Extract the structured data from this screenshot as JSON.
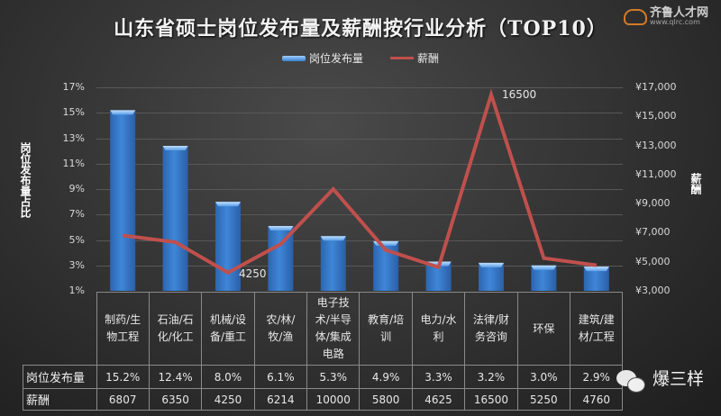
{
  "header": {
    "title": "山东省硕士岗位发布量及薪酬按行业分析（TOP10）",
    "logo_name": "齐鲁人才网",
    "logo_url": "www.qlrc.com"
  },
  "legend": {
    "bar_label": "岗位发布量",
    "line_label": "薪酬"
  },
  "axes": {
    "left_title": "岗位发布量占比",
    "right_title": "薪酬",
    "left_ticks": [
      "17%",
      "15%",
      "13%",
      "11%",
      "9%",
      "7%",
      "5%",
      "3%",
      "1%"
    ],
    "right_ticks": [
      "¥17,000",
      "¥15,000",
      "¥13,000",
      "¥11,000",
      "¥9,000",
      "¥7,000",
      "¥5,000",
      "¥3,000"
    ]
  },
  "annotations": {
    "min_label": "4250",
    "max_label": "16500"
  },
  "table": {
    "row_headers": [
      "岗位发布量",
      "薪酬"
    ],
    "categories": [
      [
        "制药/生",
        "物工程"
      ],
      [
        "石油/石",
        "化/化工"
      ],
      [
        "机械/设",
        "备/重工"
      ],
      [
        "农/林/",
        "牧/渔"
      ],
      [
        "电子技",
        "术/半导",
        "体/集成",
        "电路"
      ],
      [
        "教育/培",
        "训"
      ],
      [
        "电力/水",
        "利"
      ],
      [
        "法律/财",
        "务咨询"
      ],
      [
        "环保"
      ],
      [
        "建筑/建",
        "材/工程"
      ]
    ],
    "share": [
      "15.2%",
      "12.4%",
      "8.0%",
      "6.1%",
      "5.3%",
      "4.9%",
      "3.3%",
      "3.2%",
      "3.0%",
      "2.9%"
    ],
    "salary": [
      "6807",
      "6350",
      "4250",
      "6214",
      "10000",
      "5800",
      "4625",
      "16500",
      "5250",
      "4760"
    ]
  },
  "watermark": {
    "text": "爆三样"
  },
  "colors": {
    "bar": "#3a7fd0",
    "line": "#c0504d",
    "background": "#333333"
  },
  "chart_data": {
    "type": "bar+line",
    "title": "山东省硕士岗位发布量及薪酬按行业分析（TOP10）",
    "categories": [
      "制药/生物工程",
      "石油/石化/化工",
      "机械/设备/重工",
      "农/林/牧/渔",
      "电子技术/半导体/集成电路",
      "教育/培训",
      "电力/水利",
      "法律/财务咨询",
      "环保",
      "建筑/建材/工程"
    ],
    "series": [
      {
        "name": "岗位发布量",
        "type": "bar",
        "axis": "left",
        "unit": "%",
        "values": [
          15.2,
          12.4,
          8.0,
          6.1,
          5.3,
          4.9,
          3.3,
          3.2,
          3.0,
          2.9
        ]
      },
      {
        "name": "薪酬",
        "type": "line",
        "axis": "right",
        "unit": "¥",
        "values": [
          6807,
          6350,
          4250,
          6214,
          10000,
          5800,
          4625,
          16500,
          5250,
          4760
        ]
      }
    ],
    "ylabel": "岗位发布量占比",
    "y2label": "薪酬",
    "ylim": [
      1,
      17
    ],
    "y2lim": [
      3000,
      17000
    ],
    "grid": true,
    "legend_position": "top",
    "data_labels": {
      "min": "4250",
      "max": "16500"
    }
  }
}
